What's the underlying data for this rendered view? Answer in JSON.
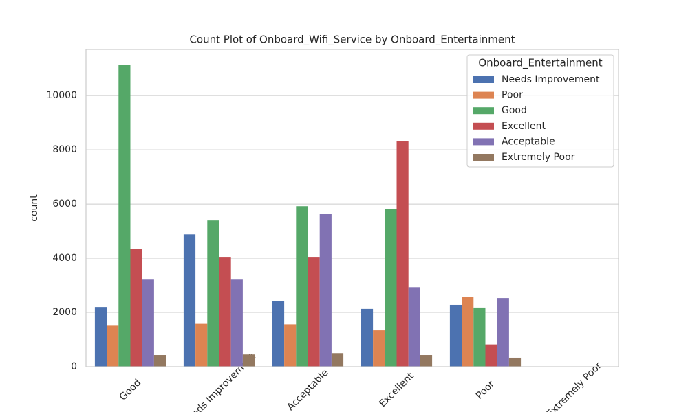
{
  "chart_data": {
    "type": "bar",
    "title": "Count Plot of Onboard_Wifi_Service by Onboard_Entertainment",
    "y_label": "count",
    "legend_title": "Onboard_Entertainment",
    "legend_position": "upper right",
    "grid": true,
    "categories": [
      "Good",
      "Needs Improvement",
      "Acceptable",
      "Excellent",
      "Poor",
      "Extremely Poor"
    ],
    "series": [
      {
        "name": "Needs Improvement",
        "color": "#4c72b0",
        "values": [
          2200,
          4880,
          2430,
          2130,
          2280,
          0
        ]
      },
      {
        "name": "Poor",
        "color": "#dd8452",
        "values": [
          1510,
          1580,
          1560,
          1340,
          2580,
          0
        ]
      },
      {
        "name": "Good",
        "color": "#55a868",
        "values": [
          11130,
          5390,
          5920,
          5820,
          2180,
          0
        ]
      },
      {
        "name": "Excellent",
        "color": "#c44e52",
        "values": [
          4350,
          4050,
          4050,
          8330,
          820,
          0
        ]
      },
      {
        "name": "Acceptable",
        "color": "#8172b3",
        "values": [
          3210,
          3210,
          5640,
          2930,
          2530,
          0
        ]
      },
      {
        "name": "Extremely Poor",
        "color": "#937860",
        "values": [
          430,
          450,
          500,
          430,
          330,
          0
        ]
      }
    ],
    "ylim": [
      0,
      11700
    ],
    "yticks": [
      0,
      2000,
      4000,
      6000,
      8000,
      10000
    ]
  }
}
